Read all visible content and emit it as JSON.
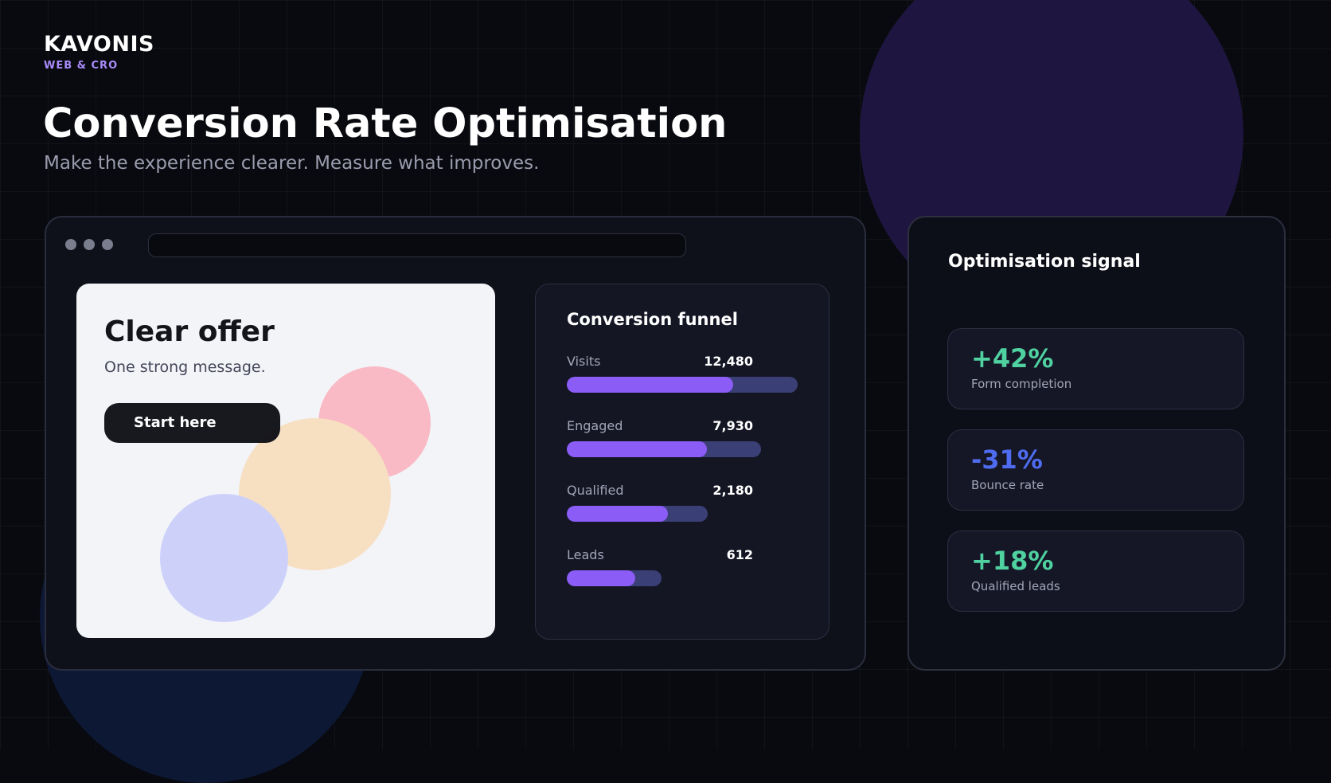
{
  "brand": {
    "name": "KAVONIS",
    "tagline": "WEB & CRO"
  },
  "hero": {
    "title": "Conversion Rate Optimisation",
    "subtitle": "Make the experience clearer. Measure what improves."
  },
  "browser": {
    "landing_card": {
      "title": "Clear offer",
      "subtitle": "One strong message.",
      "cta_label": "Start here"
    },
    "funnel": {
      "title": "Conversion funnel",
      "stages": [
        {
          "label": "Visits",
          "value": "12,480",
          "track_fraction": 1.0,
          "fill_fraction": 0.72
        },
        {
          "label": "Engaged",
          "value": "7,930",
          "track_fraction": 0.84,
          "fill_fraction": 0.72
        },
        {
          "label": "Qualified",
          "value": "2,180",
          "track_fraction": 0.61,
          "fill_fraction": 0.72
        },
        {
          "label": "Leads",
          "value": "612",
          "track_fraction": 0.41,
          "fill_fraction": 0.72
        }
      ]
    }
  },
  "signal": {
    "title": "Optimisation signal",
    "metrics": [
      {
        "value": "+42%",
        "label": "Form completion",
        "color": "#4fd1a0"
      },
      {
        "value": "-31%",
        "label": "Bounce rate",
        "color": "#4f6cf0"
      },
      {
        "value": "+18%",
        "label": "Qualified leads",
        "color": "#4fd1a0"
      }
    ]
  },
  "colors": {
    "accent_purple": "#8b5cf6",
    "track": "#3a3f75",
    "brand_tag": "#a78bfa",
    "background": "#090a0f"
  }
}
